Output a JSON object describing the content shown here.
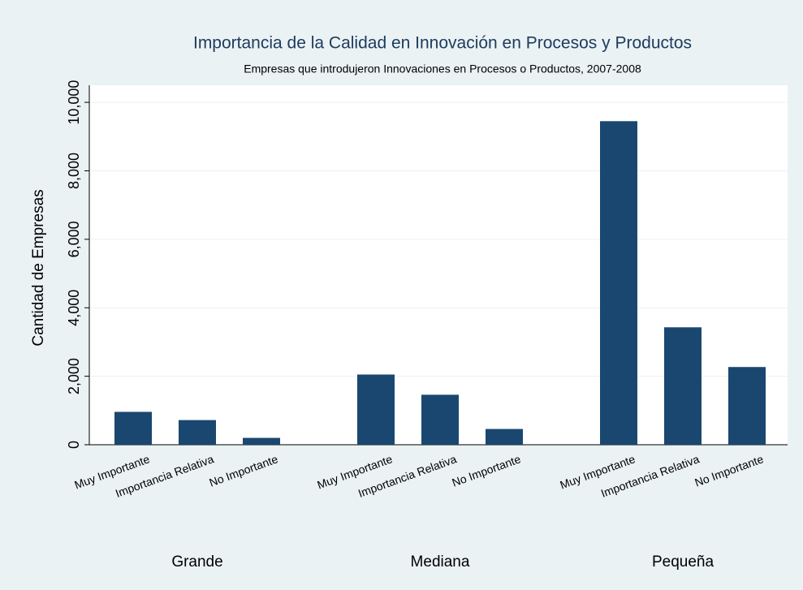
{
  "chart_data": {
    "type": "bar",
    "title": "Importancia de la Calidad en Innovación en Procesos y Productos",
    "subtitle": "Empresas que introdujeron Innovaciones en Procesos o Productos, 2007-2008",
    "y_label": "Cantidad de Empresas",
    "categories": [
      "Grande",
      "Mediana",
      "Pequeña"
    ],
    "series": [
      {
        "name": "Muy Importante",
        "color": "#1a476f",
        "values": [
          960,
          2050,
          9450
        ]
      },
      {
        "name": "Importancia Relativa",
        "color": "#1a476f",
        "values": [
          720,
          1460,
          3430
        ]
      },
      {
        "name": "No Importante",
        "color": "#1a476f",
        "values": [
          200,
          460,
          2270
        ]
      }
    ],
    "ylim": [
      0,
      10500
    ],
    "yticks": [
      0,
      {
        "value": 2000,
        "label": "2,000"
      },
      {
        "value": 4000,
        "label": "4,000"
      },
      {
        "value": 6000,
        "label": "6,000"
      },
      {
        "value": 8000,
        "label": "8,000"
      },
      {
        "value": 10000,
        "label": "10,000"
      }
    ],
    "grid": true
  }
}
